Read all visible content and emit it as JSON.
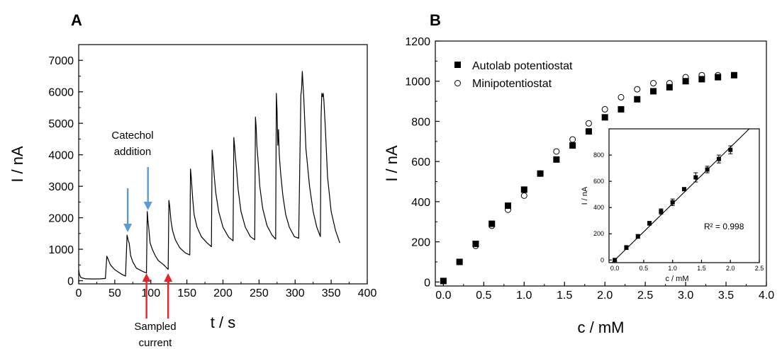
{
  "chart_data": [
    {
      "type": "line",
      "panel_label": "A",
      "xlabel": "t / s",
      "ylabel": "I / nA",
      "xlim": [
        0,
        400
      ],
      "ylim": [
        -100,
        7500
      ],
      "xticks": [
        0,
        50,
        100,
        150,
        200,
        250,
        300,
        350,
        400
      ],
      "yticks": [
        0,
        1000,
        2000,
        3000,
        4000,
        5000,
        6000,
        7000
      ],
      "series": [
        {
          "color": "#000000",
          "x": [
            0,
            1,
            3,
            6,
            10,
            20,
            30,
            37,
            39,
            44,
            50,
            60,
            65,
            67,
            68,
            69,
            70,
            72,
            75,
            80,
            90,
            94,
            95,
            96,
            97,
            99,
            102,
            106,
            110,
            118,
            124,
            125,
            126,
            128,
            130,
            134,
            140,
            148,
            154,
            155,
            156,
            158,
            160,
            164,
            170,
            178,
            184,
            185,
            186,
            188,
            190,
            194,
            200,
            208,
            214,
            215,
            216,
            217,
            219,
            221,
            225,
            231,
            238,
            244,
            245,
            246,
            247,
            249,
            251,
            255,
            261,
            268,
            273,
            274,
            275,
            276,
            277,
            278,
            280,
            283,
            287,
            292,
            299,
            305,
            307,
            308,
            309,
            310,
            312,
            315,
            320,
            325,
            330,
            335,
            336,
            337,
            338,
            339,
            340,
            342,
            345,
            350,
            356,
            362
          ],
          "y": [
            350,
            200,
            100,
            80,
            60,
            55,
            60,
            70,
            780,
            500,
            350,
            200,
            150,
            1450,
            1350,
            1250,
            1200,
            800,
            600,
            400,
            280,
            250,
            2200,
            1900,
            1700,
            1200,
            1000,
            800,
            650,
            500,
            360,
            2550,
            2400,
            1900,
            1600,
            1300,
            1050,
            880,
            820,
            3550,
            3300,
            2600,
            2100,
            1700,
            1400,
            1200,
            1080,
            4150,
            3900,
            3300,
            2800,
            2200,
            1700,
            1380,
            1270,
            4550,
            4300,
            4000,
            3500,
            2900,
            2200,
            1700,
            1400,
            1300,
            5200,
            4900,
            4300,
            3700,
            3000,
            2300,
            1750,
            1450,
            1320,
            5950,
            5400,
            4300,
            4800,
            4000,
            3400,
            2700,
            2100,
            1700,
            1400,
            1350,
            4500,
            5900,
            6100,
            6650,
            5800,
            4200,
            3000,
            2200,
            1700,
            1400,
            5200,
            5950,
            5850,
            5950,
            5700,
            4800,
            3300,
            2200,
            1600,
            1200
          ]
        }
      ],
      "annotations": [
        {
          "text_lines": [
            "Catechol",
            "addition"
          ],
          "arrow_color": "#5b9bd5",
          "arrow_x": [
            68,
            96
          ]
        },
        {
          "text_lines": [
            "Sampled",
            "current"
          ],
          "arrow_color": "#e8232b",
          "arrow_x": [
            94,
            124
          ]
        }
      ]
    },
    {
      "type": "scatter",
      "panel_label": "B",
      "xlabel": "c / mM",
      "ylabel": "I / nA",
      "xlim": [
        -0.1,
        4.0
      ],
      "ylim": [
        -20,
        1200
      ],
      "xticks": [
        0.0,
        0.5,
        1.0,
        1.5,
        2.0,
        2.5,
        3.0,
        3.5,
        4.0
      ],
      "yticks": [
        0,
        200,
        400,
        600,
        800,
        1000,
        1200
      ],
      "legend": {
        "position": "top-left"
      },
      "series": [
        {
          "name": "Autolab potentiostat",
          "marker": "filled-square",
          "color": "#000000",
          "x": [
            0.0,
            0.2,
            0.4,
            0.6,
            0.8,
            1.0,
            1.2,
            1.4,
            1.6,
            1.8,
            2.0,
            2.2,
            2.4,
            2.6,
            2.8,
            3.0,
            3.2,
            3.4,
            3.6
          ],
          "y": [
            5,
            100,
            190,
            290,
            380,
            460,
            540,
            610,
            680,
            750,
            820,
            860,
            910,
            950,
            970,
            1000,
            1010,
            1020,
            1030
          ]
        },
        {
          "name": "Minipotentiostat",
          "marker": "open-circle",
          "color": "#000000",
          "x": [
            0.0,
            0.2,
            0.4,
            0.6,
            0.8,
            1.0,
            1.2,
            1.4,
            1.6,
            1.8,
            2.0,
            2.2,
            2.4,
            2.6,
            2.8,
            3.0,
            3.2,
            3.4
          ],
          "y": [
            5,
            100,
            180,
            280,
            360,
            430,
            540,
            650,
            710,
            790,
            860,
            920,
            960,
            990,
            990,
            1020,
            1030,
            1030
          ]
        }
      ],
      "inset": {
        "type": "scatter",
        "xlabel": "c / mM",
        "ylabel": "I / nA",
        "xlim": [
          -0.1,
          2.5
        ],
        "ylim": [
          -20,
          1000
        ],
        "xticks": [
          0.0,
          0.5,
          1.0,
          1.5,
          2.0,
          2.5
        ],
        "yticks": [
          0,
          200,
          400,
          600,
          800
        ],
        "annotation": "R² = 0.998",
        "x": [
          0.0,
          0.2,
          0.4,
          0.6,
          0.8,
          1.0,
          1.2,
          1.4,
          1.6,
          1.8,
          2.0
        ],
        "y": [
          0,
          95,
          180,
          280,
          370,
          440,
          540,
          630,
          690,
          770,
          840
        ],
        "error": [
          10,
          15,
          15,
          15,
          20,
          25,
          10,
          35,
          25,
          30,
          30
        ],
        "fit": {
          "slope": 430,
          "intercept": 0
        }
      }
    }
  ]
}
